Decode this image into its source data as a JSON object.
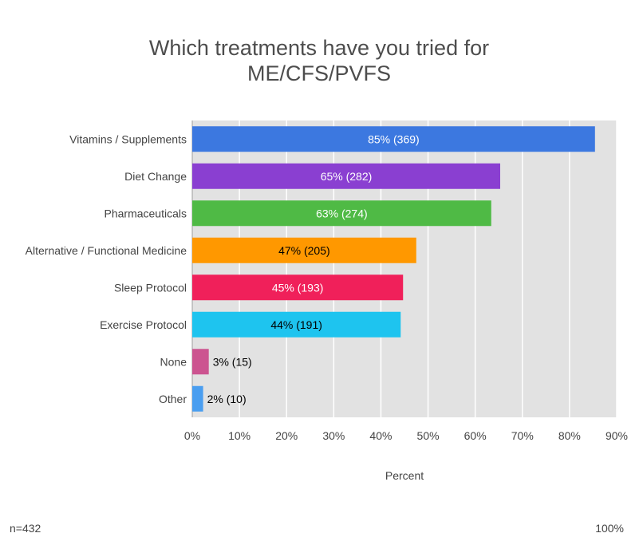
{
  "chart_data": {
    "type": "bar",
    "orientation": "horizontal",
    "title_lines": [
      "Which treatments have you tried for",
      "ME/CFS/PVFS"
    ],
    "xlabel": "Percent",
    "ylabel": "",
    "xlim": [
      0,
      90
    ],
    "x_ticks": [
      "0%",
      "10%",
      "20%",
      "30%",
      "40%",
      "50%",
      "60%",
      "70%",
      "80%",
      "90%"
    ],
    "grid": true,
    "legend": "none",
    "categories": [
      "Vitamins / Supplements",
      "Diet Change",
      "Pharmaceuticals",
      "Alternative / Functional Medicine",
      "Sleep Protocol",
      "Exercise Protocol",
      "None",
      "Other"
    ],
    "values": [
      85.4,
      65.3,
      63.4,
      47.5,
      44.7,
      44.2,
      3.5,
      2.3
    ],
    "data_labels": [
      "85% (369)",
      "65% (282)",
      "63% (274)",
      "47% (205)",
      "45% (193)",
      "44% (191)",
      "3% (15)",
      "2% (10)"
    ],
    "colors": [
      "#3c78e0",
      "#8a3fd1",
      "#4fba45",
      "#ff9800",
      "#f0205a",
      "#1ec4ef",
      "#cc5490",
      "#4a9ef0"
    ],
    "label_colors": [
      "#ffffff",
      "#ffffff",
      "#ffffff",
      "#000000",
      "#ffffff",
      "#000000",
      "#000000",
      "#000000"
    ]
  },
  "footer": {
    "sample_size": "n=432",
    "right_note": "100%"
  }
}
